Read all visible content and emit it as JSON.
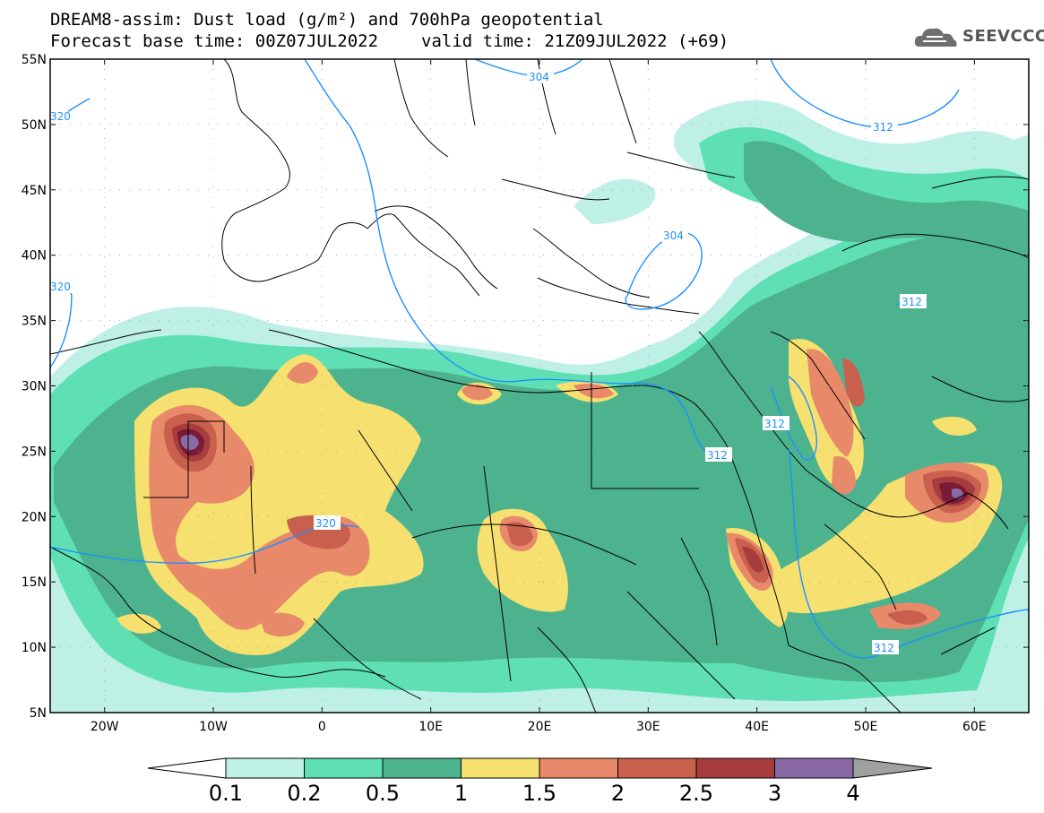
{
  "title": {
    "line1": "DREAM8-assim: Dust load (g/m²) and 700hPa geopotential",
    "line2_left": "Forecast base time: 00Z07JUL2022",
    "line2_right": "valid time: 21Z09JUL2022 (+69)"
  },
  "logo": {
    "text": "SEEVCCC",
    "icon": "cloud-logo-icon"
  },
  "map": {
    "lon_range": [
      -25,
      65
    ],
    "lat_range": [
      5,
      55
    ],
    "lat_ticks": [
      "5N",
      "10N",
      "15N",
      "20N",
      "25N",
      "30N",
      "35N",
      "40N",
      "45N",
      "50N",
      "55N"
    ],
    "lon_ticks": [
      "20W",
      "10W",
      "0",
      "10E",
      "20E",
      "30E",
      "40E",
      "50E",
      "60E"
    ],
    "contour_labels": [
      "304",
      "304",
      "312",
      "312",
      "312",
      "312",
      "312",
      "320",
      "320",
      "320"
    ],
    "contour_color": "#1e90ff"
  },
  "colorbar": {
    "levels": [
      "0.1",
      "0.2",
      "0.5",
      "1",
      "1.5",
      "2",
      "2.5",
      "3",
      "4"
    ],
    "colors": [
      "#bff0e6",
      "#5fe0b4",
      "#4db38e",
      "#f5e070",
      "#e8896a",
      "#c9604d",
      "#a63c3c",
      "#7a1a38",
      "#8a6aa5",
      "#a0a0a0"
    ]
  }
}
